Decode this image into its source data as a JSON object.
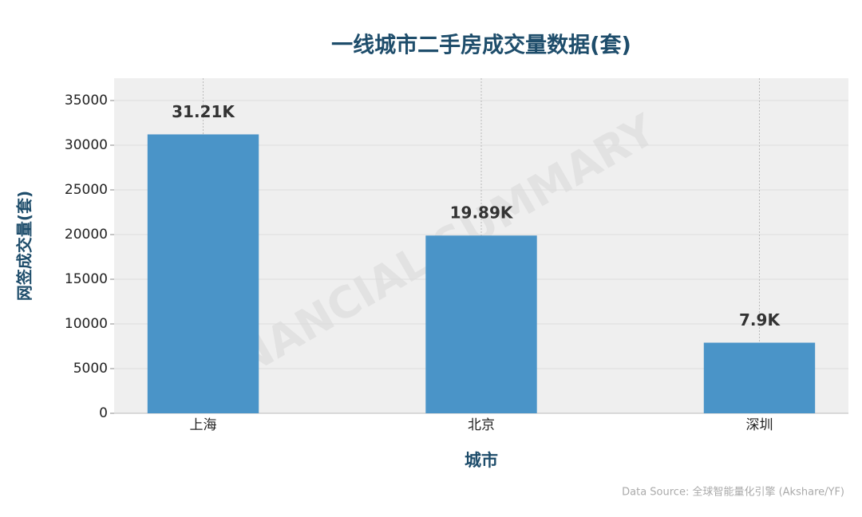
{
  "chart_data": {
    "type": "bar",
    "title": "一线城市二手房成交量数据(套)",
    "x_label": "城市",
    "y_label": "网签成交量(套)",
    "categories": [
      "上海",
      "北京",
      "深圳"
    ],
    "values": [
      31210,
      19890,
      7900
    ],
    "value_labels": [
      "31.21K",
      "19.89K",
      "7.9K"
    ],
    "color": "#4a94c8",
    "ylim": [
      0,
      37500
    ],
    "yticks": [
      0,
      5000,
      10000,
      15000,
      20000,
      25000,
      30000,
      35000
    ],
    "grid": true,
    "watermark": "FINANCIAL SUMMARY",
    "source": "Data Source: 全球智能量化引擎 (Akshare/YF)"
  }
}
